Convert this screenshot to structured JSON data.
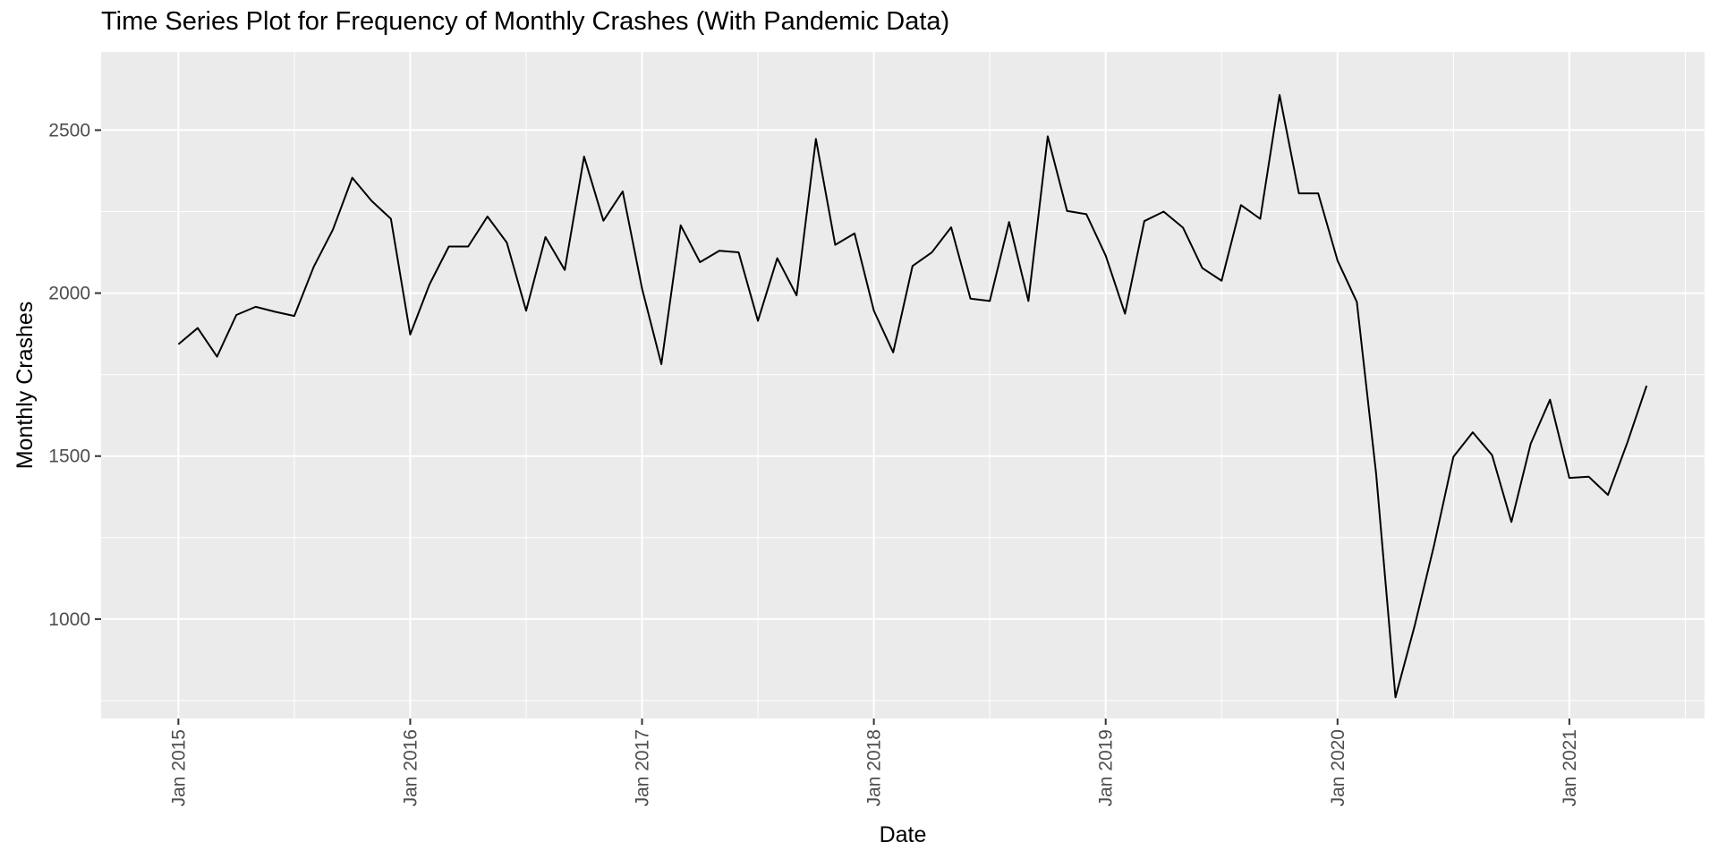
{
  "chart_data": {
    "type": "line",
    "title": "Time Series Plot for Frequency of Monthly Crashes (With Pandemic Data)",
    "xlabel": "Date",
    "ylabel": "Monthly Crashes",
    "x_start": "Jan 2015",
    "x_end": "May 2021",
    "xlim": [
      "Sep 2014",
      "Aug 2021"
    ],
    "ylim": [
      695,
      2740
    ],
    "x_tick_labels": [
      "Jan 2015",
      "Jan 2016",
      "Jan 2017",
      "Jan 2018",
      "Jan 2019",
      "Jan 2020",
      "Jan 2021"
    ],
    "y_ticks": [
      1000,
      1500,
      2000,
      2500
    ],
    "grid": true,
    "background": "#ebebeb",
    "line_color": "#000000",
    "series": [
      {
        "values": [
          1843,
          1893,
          1805,
          1933,
          1958,
          1943,
          1930,
          2080,
          2195,
          2354,
          2283,
          2228,
          1873,
          2027,
          2143,
          2143,
          2235,
          2155,
          1946,
          2172,
          2071,
          2419,
          2222,
          2312,
          2014,
          1782,
          2208,
          2095,
          2130,
          2125,
          1915,
          2107,
          1993,
          2473,
          2148,
          2183,
          1946,
          1818,
          2083,
          2125,
          2202,
          1983,
          1976,
          2218,
          1976,
          2481,
          2252,
          2242,
          2115,
          1937,
          2221,
          2250,
          2201,
          2077,
          2038,
          2270,
          2228,
          2608,
          2306,
          2306,
          2100,
          1973,
          1445,
          760,
          981,
          1227,
          1498,
          1573,
          1503,
          1298,
          1538,
          1673,
          1433,
          1437,
          1381,
          1541,
          1716
        ]
      }
    ]
  }
}
